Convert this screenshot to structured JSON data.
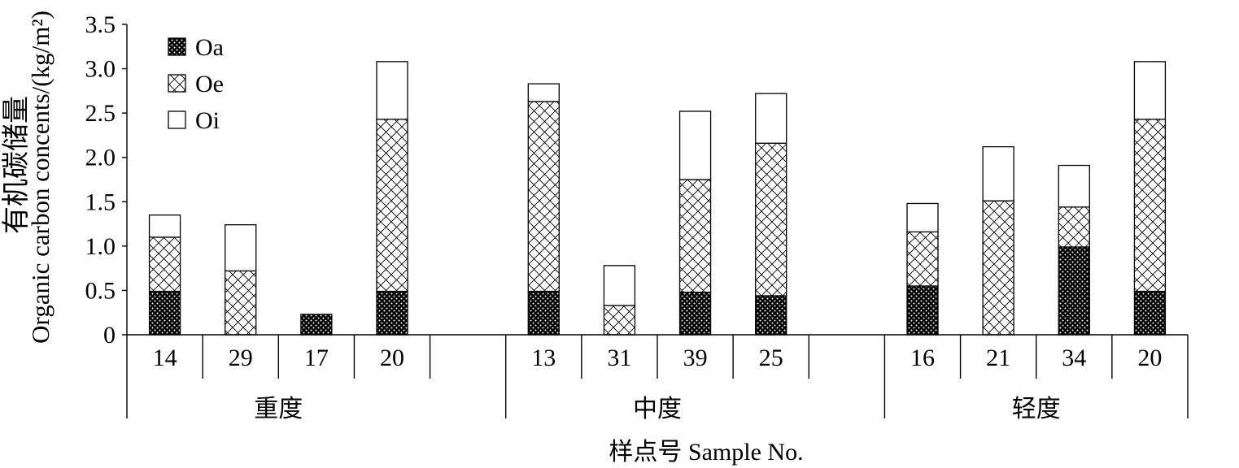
{
  "chart_data": {
    "type": "bar",
    "stacked": true,
    "categories": [
      "14",
      "29",
      "17",
      "20",
      "13",
      "31",
      "39",
      "25",
      "16",
      "21",
      "34",
      "20"
    ],
    "groups": [
      {
        "label": "重度",
        "members": [
          0,
          1,
          2,
          3
        ]
      },
      {
        "label": "中度",
        "members": [
          4,
          5,
          6,
          7
        ]
      },
      {
        "label": "轻度",
        "members": [
          8,
          9,
          10,
          11
        ]
      }
    ],
    "series": [
      {
        "name": "Oa",
        "pattern": "dotted",
        "color": "#000000",
        "values": [
          0.49,
          0,
          0.23,
          0.49,
          0.49,
          0,
          0.48,
          0.44,
          0.55,
          0,
          0.99,
          0.49
        ]
      },
      {
        "name": "Oe",
        "pattern": "crosshatch",
        "color": "#ffffff",
        "values": [
          0.61,
          0.72,
          0,
          1.94,
          2.14,
          0.33,
          1.27,
          1.72,
          0.61,
          1.51,
          0.45,
          1.94
        ]
      },
      {
        "name": "Oi",
        "pattern": "none",
        "color": "#ffffff",
        "values": [
          0.25,
          0.52,
          0,
          0.65,
          0.2,
          0.45,
          0.77,
          0.56,
          0.32,
          0.61,
          0.47,
          0.65
        ]
      }
    ],
    "xlabel": "样点号 Sample No.",
    "ylabel_cn": "有机碳储量",
    "ylabel": "Organic carbon concents/(kg/m²)",
    "ylim": [
      0,
      3.5
    ],
    "yticks": [
      0,
      0.5,
      1,
      1.5,
      2,
      2.5,
      3,
      3.5
    ],
    "ytick_labels": [
      "0",
      "0.5",
      "1.0",
      "1.5",
      "2.0",
      "2.5",
      "3.0",
      "3.5"
    ],
    "legend": "top-left",
    "grid": false
  }
}
